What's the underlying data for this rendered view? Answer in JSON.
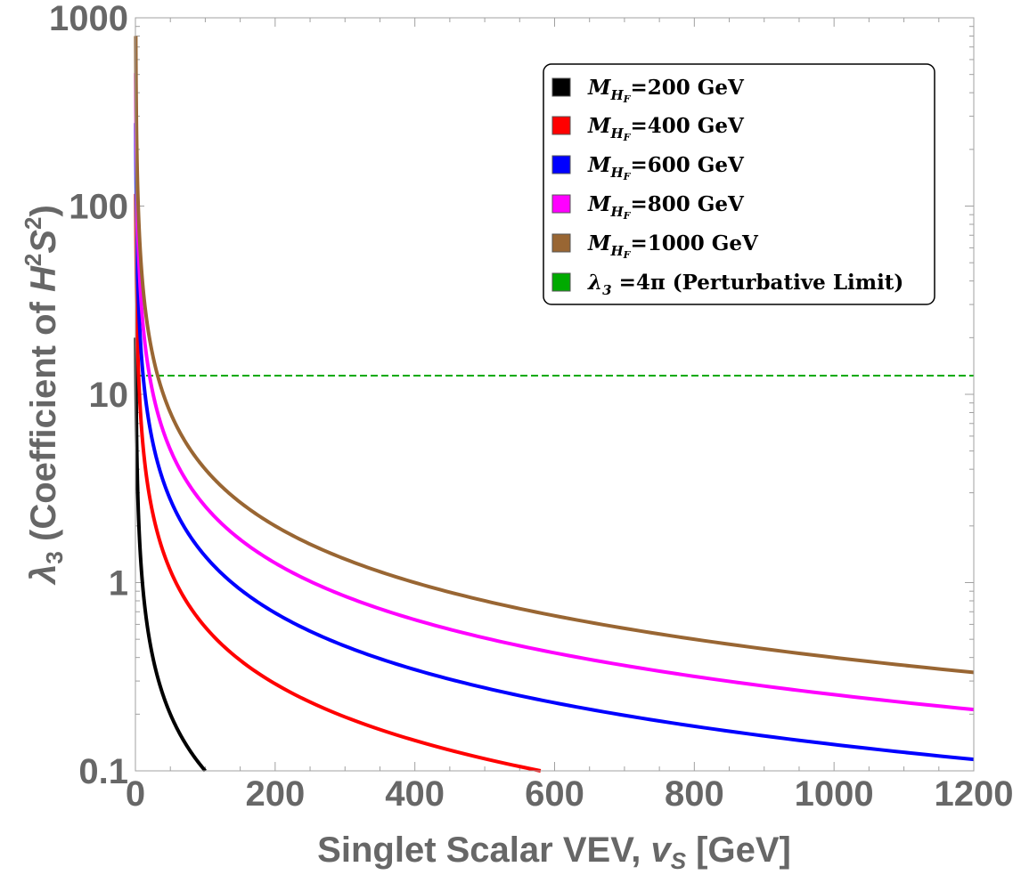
{
  "chart_data": {
    "type": "line",
    "yscale": "log",
    "xlim": [
      0,
      1200
    ],
    "ylim": [
      0.1,
      1000
    ],
    "x_ticks": [
      0,
      200,
      400,
      600,
      800,
      1000,
      1200
    ],
    "x_tick_labels": [
      "0",
      "200",
      "400",
      "600",
      "800",
      "1000",
      "1200"
    ],
    "y_ticks": [
      0.1,
      1,
      10,
      100,
      1000
    ],
    "y_tick_labels": [
      "0.1",
      "1",
      "10",
      "100",
      "1000"
    ],
    "xlabel": {
      "main": "Singlet Scalar VEV, ",
      "var": "v",
      "sub": "S",
      "unit": " [GeV]"
    },
    "ylabel": {
      "sym": "λ",
      "sub": "3",
      "pre": " (Coefficient of ",
      "H": "H",
      "sup1": "2",
      "S": "S",
      "sup2": "2",
      "post": ")"
    },
    "series": [
      {
        "name": "M_HF=200 GeV",
        "mass": 200,
        "k": 10,
        "color": "#000000",
        "legend": {
          "M": "M",
          "sub": "H",
          "subsub": "F",
          "rest": "=200 GeV"
        }
      },
      {
        "name": "M_HF=400 GeV",
        "mass": 400,
        "k": 58,
        "color": "#ff0000",
        "legend": {
          "M": "M",
          "sub": "H",
          "subsub": "F",
          "rest": "=400 GeV"
        }
      },
      {
        "name": "M_HF=600 GeV",
        "mass": 600,
        "k": 138,
        "color": "#0000ff",
        "legend": {
          "M": "M",
          "sub": "H",
          "subsub": "F",
          "rest": "=600 GeV"
        }
      },
      {
        "name": "M_HF=800 GeV",
        "mass": 800,
        "k": 254,
        "color": "#ff00ff",
        "legend": {
          "M": "M",
          "sub": "H",
          "subsub": "F",
          "rest": "=800 GeV"
        }
      },
      {
        "name": "M_HF=1000 GeV",
        "mass": 1000,
        "k": 400,
        "color": "#996633",
        "legend": {
          "M": "M",
          "sub": "H",
          "subsub": "F",
          "rest": "=1000 GeV"
        }
      }
    ],
    "reference_line": {
      "name": "λ3 =4π (Perturbative Limit)",
      "value": 12.566,
      "color": "#00aa00",
      "style": "dashed",
      "legend": {
        "sym": "λ",
        "sub": "3",
        "rest": " =4π (Perturbative Limit)"
      }
    },
    "curve_model": "λ3 = k / vS",
    "legend_position": "top-right"
  }
}
